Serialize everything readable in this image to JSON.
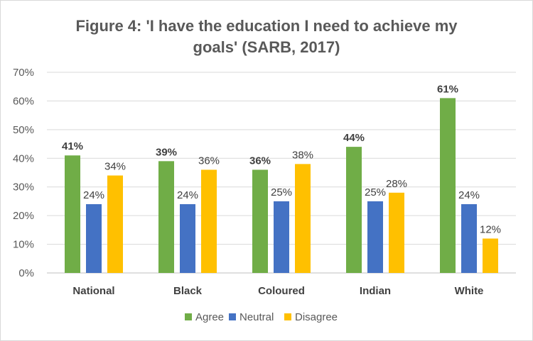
{
  "chart_data": {
    "type": "bar",
    "title_lines": [
      "Figure 4: 'I have the education I need to achieve my",
      "goals' (SARB, 2017)"
    ],
    "categories": [
      "National",
      "Black",
      "Coloured",
      "Indian",
      "White"
    ],
    "series": [
      {
        "name": "Agree",
        "color": "#70ad47",
        "values": [
          41,
          39,
          36,
          44,
          61
        ],
        "labels": [
          "41%",
          "39%",
          "36%",
          "44%",
          "61%"
        ],
        "label_bold": true
      },
      {
        "name": "Neutral",
        "color": "#4472c4",
        "values": [
          24,
          24,
          25,
          25,
          24
        ],
        "labels": [
          "24%",
          "24%",
          "25%",
          "25%",
          "24%"
        ],
        "label_bold": false
      },
      {
        "name": "Disagree",
        "color": "#ffc000",
        "values": [
          34,
          36,
          38,
          28,
          12
        ],
        "labels": [
          "34%",
          "36%",
          "38%",
          "28%",
          "12%"
        ],
        "label_bold": false
      }
    ],
    "y_ticks": [
      "0%",
      "10%",
      "20%",
      "30%",
      "40%",
      "50%",
      "60%",
      "70%"
    ],
    "ylim": [
      0,
      70
    ],
    "grid": true,
    "legend": "bottom"
  }
}
